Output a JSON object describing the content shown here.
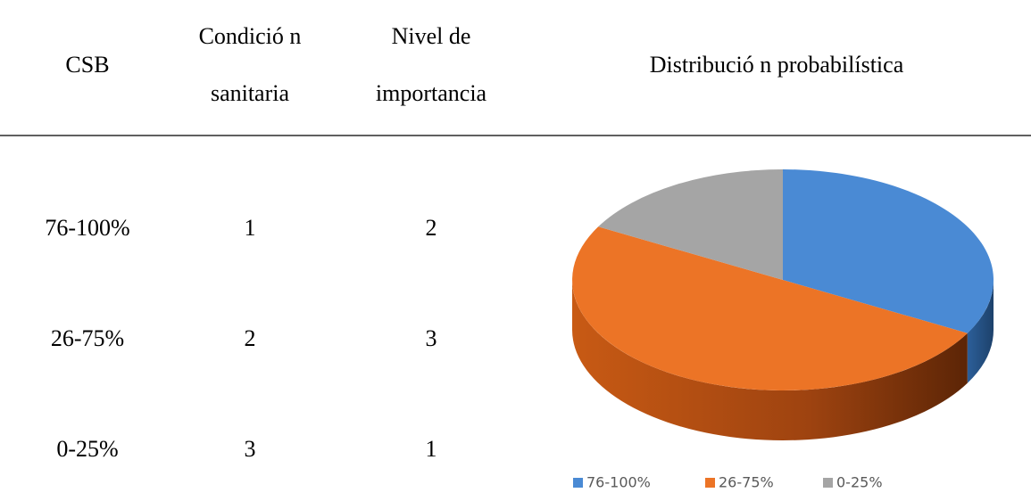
{
  "table": {
    "headers": [
      [
        "CSB"
      ],
      [
        "Condició n",
        "sanitaria"
      ],
      [
        "Nivel de",
        "importancia"
      ],
      [
        "Distribució n probabilística"
      ]
    ],
    "rows": [
      [
        "76-100%",
        "1",
        "2"
      ],
      [
        "26-75%",
        "2",
        "3"
      ],
      [
        "0-25%",
        "3",
        "1"
      ]
    ]
  },
  "chart_data": {
    "type": "pie",
    "categories": [
      "76-100%",
      "26-75%",
      "0-25%"
    ],
    "values": [
      33,
      50,
      17
    ],
    "colors": [
      "#4a8ad4",
      "#ec7426",
      "#a5a5a5"
    ],
    "legend": "bottom"
  }
}
